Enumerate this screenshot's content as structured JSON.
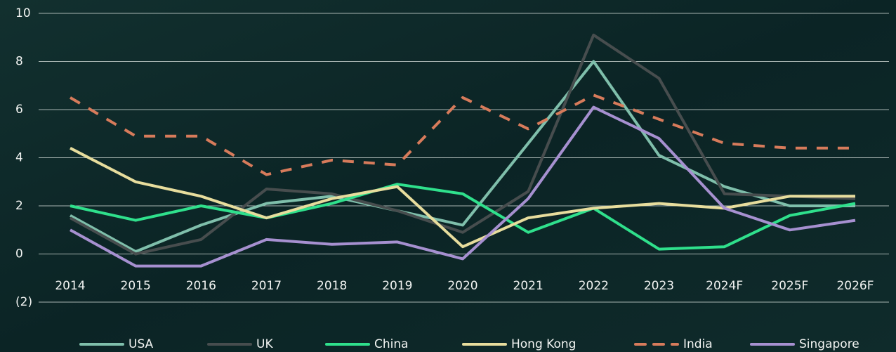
{
  "chart_data": {
    "type": "line",
    "categories": [
      "2014",
      "2015",
      "2016",
      "2017",
      "2018",
      "2019",
      "2020",
      "2021",
      "2022",
      "2023",
      "2024F",
      "2025F",
      "2026F"
    ],
    "series": [
      {
        "name": "USA",
        "color": "#7fbfab",
        "values": [
          1.6,
          0.1,
          1.2,
          2.1,
          2.4,
          1.8,
          1.2,
          4.6,
          8.0,
          4.1,
          2.8,
          2.0,
          2.0
        ]
      },
      {
        "name": "UK",
        "color": "#474d4e",
        "values": [
          1.5,
          0.0,
          0.6,
          2.7,
          2.5,
          1.8,
          0.9,
          2.6,
          9.1,
          7.3,
          2.5,
          2.4,
          2.3
        ]
      },
      {
        "name": "China",
        "color": "#2fe08c",
        "values": [
          2.0,
          1.4,
          2.0,
          1.5,
          2.1,
          2.9,
          2.5,
          0.9,
          1.9,
          0.2,
          0.3,
          1.6,
          2.1
        ]
      },
      {
        "name": "Hong Kong",
        "color": "#e7dd9d",
        "values": [
          4.4,
          3.0,
          2.4,
          1.5,
          2.3,
          2.8,
          0.3,
          1.5,
          1.9,
          2.1,
          1.9,
          2.4,
          2.4
        ]
      },
      {
        "name": "India",
        "color": "#d77b5b",
        "dashed": true,
        "values": [
          6.5,
          4.9,
          4.9,
          3.3,
          3.9,
          3.7,
          6.5,
          5.2,
          6.6,
          5.6,
          4.6,
          4.4,
          4.4
        ]
      },
      {
        "name": "Singapore",
        "color": "#a690d0",
        "values": [
          1.0,
          -0.5,
          -0.5,
          0.6,
          0.4,
          0.5,
          -0.2,
          2.3,
          6.1,
          4.8,
          1.9,
          1.0,
          1.4
        ]
      }
    ],
    "ylim": [
      -2,
      10
    ],
    "yticks": [
      {
        "value": -2,
        "label": "(2)"
      },
      0,
      2,
      4,
      6,
      8,
      10
    ],
    "grid": true
  }
}
